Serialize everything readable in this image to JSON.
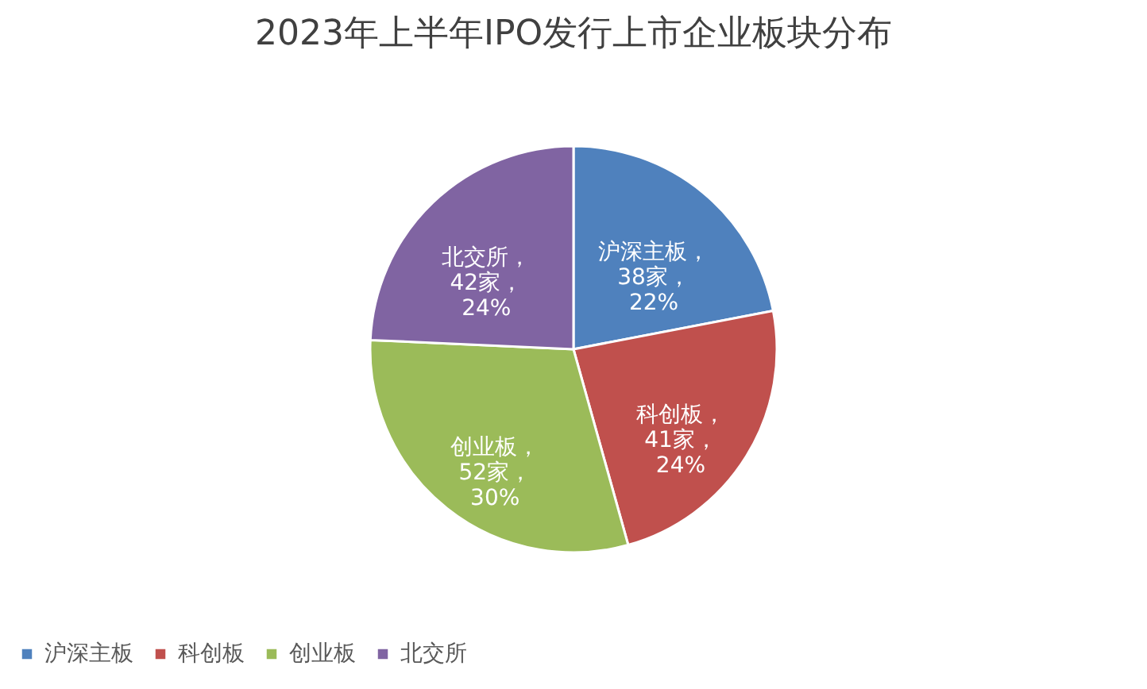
{
  "chart_data": {
    "type": "pie",
    "title": "2023年上半年IPO发行上市企业板块分布",
    "categories": [
      "沪深主板",
      "科创板",
      "创业板",
      "北交所"
    ],
    "values": [
      38,
      41,
      52,
      42
    ],
    "colors": [
      "#4f81bd",
      "#c0504d",
      "#9bbb59",
      "#8064a2"
    ],
    "value_labels": [
      "沪深主板，\n38家，\n22%",
      "科创板，\n41家，\n24%",
      "创业板，\n52家，\n30%",
      "北交所，\n42家，\n24%"
    ],
    "legend": "bottom"
  }
}
